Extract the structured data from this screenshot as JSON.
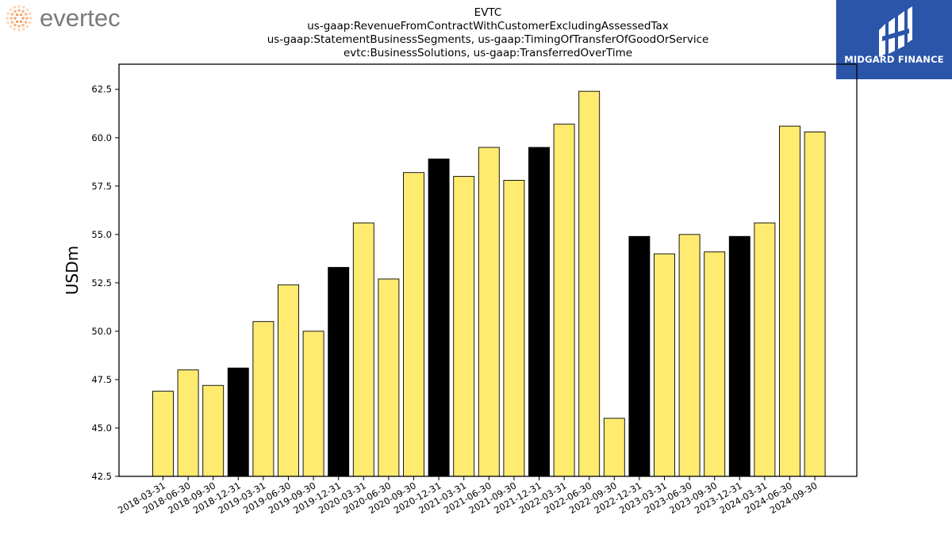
{
  "branding": {
    "left_logo_text": "evertec",
    "right_logo_text": "MIDGARD FINANCE"
  },
  "colors": {
    "bar_default": "#ffeb70",
    "bar_q4": "#000000",
    "bar_edge": "#000000",
    "evertec_orange": "#f07a22",
    "evertec_text": "#7a7a7a",
    "midgard_bg": "#2b55a8"
  },
  "chart_data": {
    "type": "bar",
    "title_lines": [
      "EVTC",
      "us-gaap:RevenueFromContractWithCustomerExcludingAssessedTax",
      "us-gaap:StatementBusinessSegments, us-gaap:TimingOfTransferOfGoodOrService",
      "evtc:BusinessSolutions, us-gaap:TransferredOverTime"
    ],
    "ylabel": "USDm",
    "xlabel": "",
    "ylim": [
      42.5,
      63.8
    ],
    "yticks": [
      "42.5",
      "45.0",
      "47.5",
      "50.0",
      "52.5",
      "55.0",
      "57.5",
      "60.0",
      "62.5"
    ],
    "grid": false,
    "categories": [
      "2018-03-31",
      "2018-06-30",
      "2018-09-30",
      "2018-12-31",
      "2019-03-31",
      "2019-06-30",
      "2019-09-30",
      "2019-12-31",
      "2020-03-31",
      "2020-06-30",
      "2020-09-30",
      "2020-12-31",
      "2021-03-31",
      "2021-06-30",
      "2021-09-30",
      "2021-12-31",
      "2022-03-31",
      "2022-06-30",
      "2022-09-30",
      "2022-12-31",
      "2023-03-31",
      "2023-06-30",
      "2023-09-30",
      "2023-12-31",
      "2024-03-31",
      "2024-06-30",
      "2024-09-30"
    ],
    "values": [
      46.9,
      48.0,
      47.2,
      48.1,
      50.5,
      52.4,
      50.0,
      53.3,
      55.6,
      52.7,
      58.2,
      58.9,
      58.0,
      59.5,
      57.8,
      59.5,
      60.7,
      62.4,
      45.5,
      54.9,
      54.0,
      55.0,
      54.1,
      54.9,
      55.6,
      60.6,
      60.3
    ]
  }
}
